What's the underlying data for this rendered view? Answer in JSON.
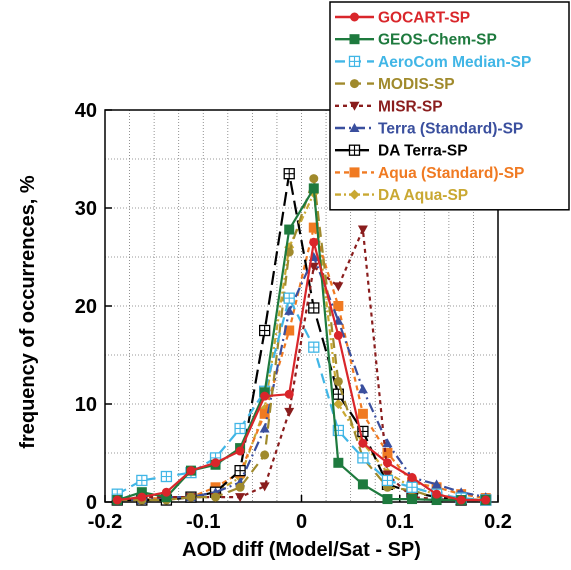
{
  "chart_data": {
    "type": "line",
    "title": "",
    "xlabel": "AOD diff (Model/Sat - SP)",
    "ylabel": "frequency of occurrences, %",
    "xlim": [
      -0.2,
      0.2
    ],
    "ylim": [
      0,
      40
    ],
    "xticks": [
      "-0.2",
      "-0.1",
      "0",
      "0.1",
      "0.2"
    ],
    "yticks": [
      "0",
      "10",
      "20",
      "30",
      "40"
    ],
    "grid": true,
    "legend_position": "top-right",
    "x": [
      -0.1875,
      -0.1625,
      -0.1375,
      -0.1125,
      -0.0875,
      -0.0625,
      -0.0375,
      -0.0125,
      0.0125,
      0.0375,
      0.0625,
      0.0875,
      0.1125,
      0.1375,
      0.1625,
      0.1875
    ],
    "series": [
      {
        "name": "GOCART-SP",
        "color": "#d9262b",
        "dash": "",
        "marker": "circle",
        "values": [
          0.2,
          0.5,
          1.0,
          3.2,
          4.0,
          5.2,
          10.8,
          11.0,
          26.5,
          17.0,
          6.0,
          4.0,
          2.5,
          0.8,
          0.2,
          0.2
        ]
      },
      {
        "name": "GEOS-Chem-SP",
        "color": "#1e7a3e",
        "dash": "",
        "marker": "square",
        "values": [
          0.2,
          1.0,
          0.5,
          3.2,
          3.8,
          5.5,
          11.2,
          27.8,
          32.0,
          4.0,
          1.8,
          0.3,
          0.3,
          0.2,
          0.2,
          0.2
        ]
      },
      {
        "name": "AeroCom Median-SP",
        "color": "#41b6e6",
        "dash": "10,6",
        "marker": "crossbox",
        "values": [
          0.8,
          2.2,
          2.6,
          3.0,
          4.5,
          7.5,
          11.3,
          20.8,
          15.8,
          7.3,
          4.5,
          2.2,
          1.5,
          0.8,
          0.4,
          0.2
        ]
      },
      {
        "name": "MODIS-SP",
        "color": "#a08a2c",
        "dash": "10,6",
        "marker": "circle",
        "values": [
          0.2,
          0.2,
          0.2,
          0.5,
          0.5,
          1.5,
          4.8,
          25.5,
          33.0,
          12.3,
          4.5,
          1.5,
          1.2,
          0.4,
          0.3,
          0.2
        ]
      },
      {
        "name": "MISR-SP",
        "color": "#8a1d1d",
        "dash": "4,4",
        "marker": "triangle-down",
        "values": [
          0.2,
          0.5,
          0.5,
          0.5,
          0.5,
          0.5,
          1.6,
          9.2,
          24.0,
          22.0,
          27.8,
          2.8,
          0.5,
          0.3,
          0.2,
          0.2
        ]
      },
      {
        "name": "Terra (Standard)-SP",
        "color": "#3a4f9e",
        "dash": "10,4,2,4",
        "marker": "triangle-up",
        "values": [
          0.2,
          0.2,
          0.5,
          0.5,
          1.0,
          2.0,
          7.5,
          19.5,
          25.0,
          18.5,
          11.5,
          6.0,
          2.5,
          1.8,
          1.0,
          0.5
        ]
      },
      {
        "name": "DA Terra-SP",
        "color": "#000000",
        "dash": "14,6",
        "marker": "crossbox",
        "values": [
          0.2,
          0.2,
          0.2,
          0.5,
          1.0,
          3.2,
          17.5,
          33.5,
          19.8,
          11.0,
          7.2,
          1.8,
          1.0,
          0.5,
          0.2,
          0.2
        ]
      },
      {
        "name": "Aqua (Standard)-SP",
        "color": "#f07a22",
        "dash": "5,4",
        "marker": "square",
        "values": [
          0.2,
          0.2,
          0.5,
          0.5,
          1.5,
          3.0,
          9.0,
          17.5,
          28.0,
          20.0,
          9.0,
          5.0,
          2.0,
          1.5,
          0.8,
          0.4
        ]
      },
      {
        "name": "DA Aqua-SP",
        "color": "#c9a832",
        "dash": "6,3,2,3",
        "marker": "diamond",
        "values": [
          0.2,
          0.2,
          0.2,
          0.5,
          1.0,
          2.5,
          9.5,
          26.0,
          31.5,
          10.0,
          6.0,
          3.0,
          1.5,
          0.8,
          0.3,
          0.2
        ]
      }
    ]
  }
}
